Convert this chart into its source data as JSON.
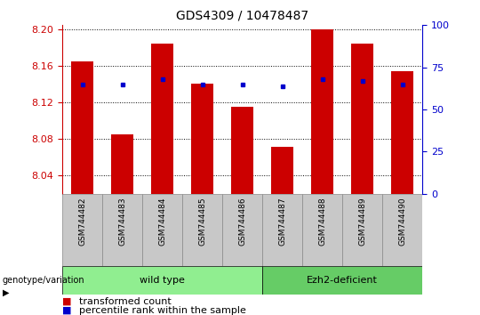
{
  "title": "GDS4309 / 10478487",
  "samples": [
    "GSM744482",
    "GSM744483",
    "GSM744484",
    "GSM744485",
    "GSM744486",
    "GSM744487",
    "GSM744488",
    "GSM744489",
    "GSM744490"
  ],
  "transformed_counts": [
    8.165,
    8.085,
    8.185,
    8.141,
    8.115,
    8.071,
    8.2,
    8.185,
    8.155
  ],
  "percentile_ranks": [
    65,
    65,
    68,
    65,
    65,
    64,
    68,
    67,
    65
  ],
  "ylim_left": [
    8.02,
    8.205
  ],
  "ylim_right": [
    0,
    100
  ],
  "yticks_left": [
    8.04,
    8.08,
    8.12,
    8.16,
    8.2
  ],
  "yticks_right": [
    0,
    25,
    50,
    75,
    100
  ],
  "wt_count": 5,
  "ezh_count": 4,
  "group_labels": [
    "wild type",
    "Ezh2-deficient"
  ],
  "group_colors": [
    "#90EE90",
    "#66CC66"
  ],
  "group_annotation_label": "genotype/variation",
  "bar_color": "#CC0000",
  "percentile_color": "#0000CC",
  "bar_width": 0.55,
  "base_value": 8.02,
  "legend_items": [
    {
      "label": "transformed count",
      "color": "#CC0000"
    },
    {
      "label": "percentile rank within the sample",
      "color": "#0000CC"
    }
  ],
  "background_color": "#FFFFFF",
  "plot_bg_color": "#FFFFFF",
  "tick_label_color_left": "#CC0000",
  "tick_label_color_right": "#0000CC",
  "grid_color": "#000000",
  "label_area_color": "#C8C8C8",
  "title_fontsize": 10,
  "tick_fontsize": 8,
  "sample_fontsize": 6.5,
  "group_fontsize": 8,
  "legend_fontsize": 8
}
